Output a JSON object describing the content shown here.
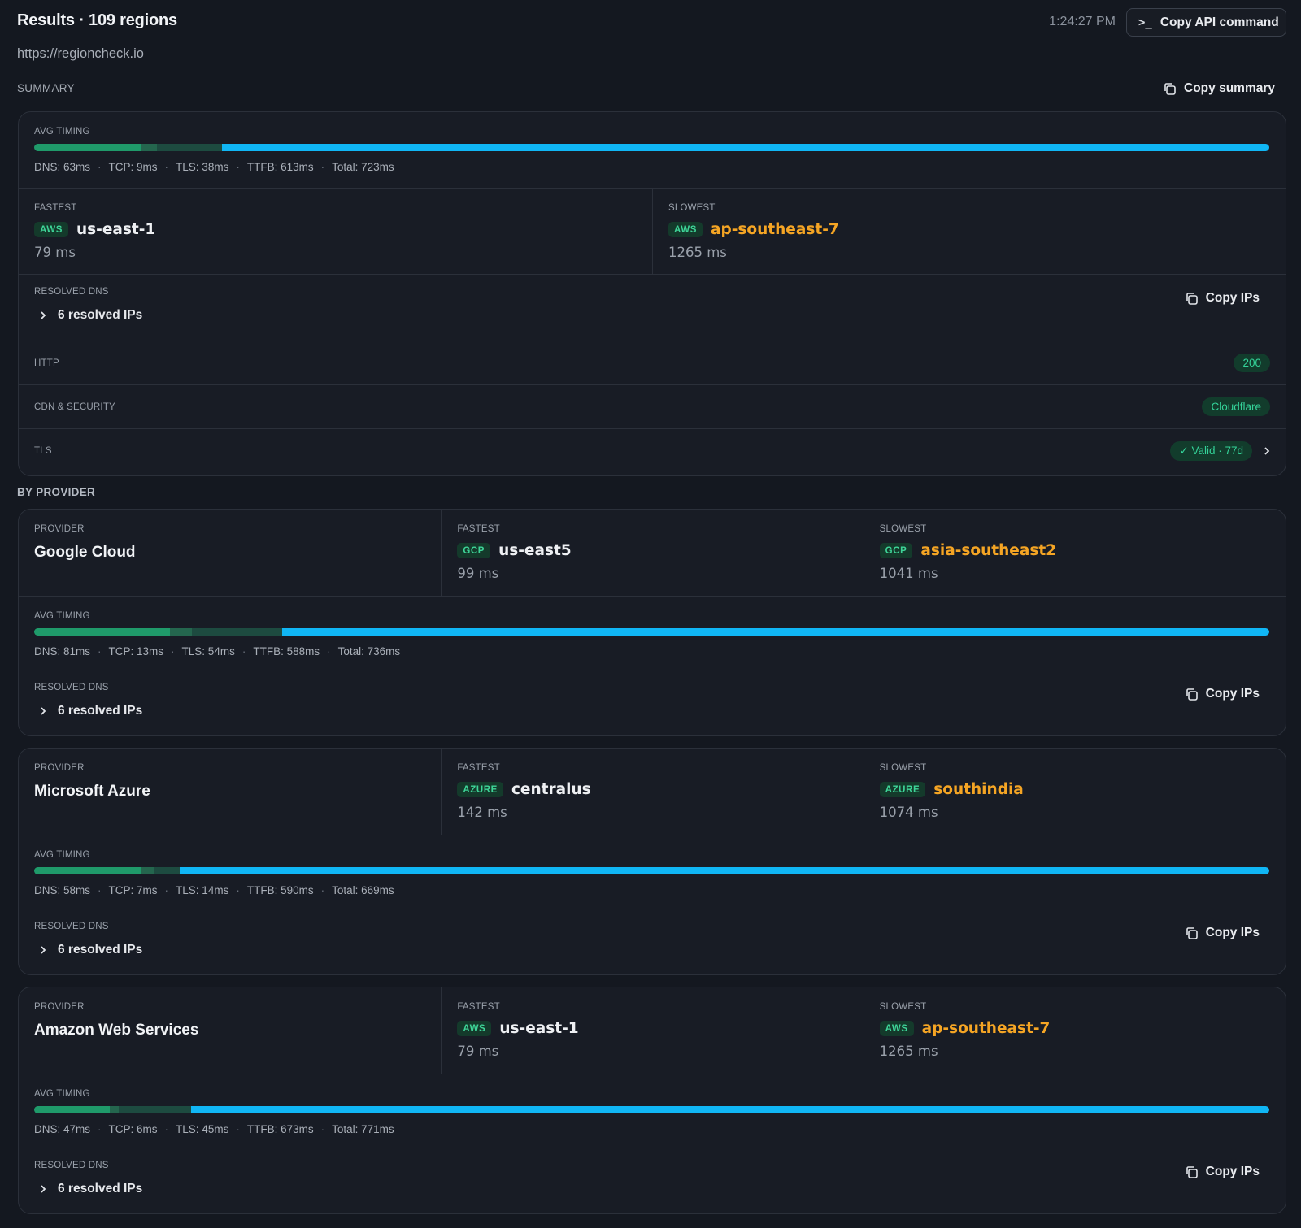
{
  "header": {
    "title": "Results · 109 regions",
    "time": "1:24:27 PM",
    "api_button": "Copy API command",
    "url": "https://regioncheck.io"
  },
  "summary": {
    "label": "SUMMARY",
    "copy_label": "Copy summary",
    "timing_label": "AVG TIMING",
    "timing": {
      "dns": "DNS: 63ms",
      "tcp": "TCP: 9ms",
      "tls": "TLS: 38ms",
      "ttfb": "TTFB: 613ms",
      "total": "Total: 723ms"
    },
    "timing_ms": {
      "dns": 63,
      "tcp": 9,
      "tls": 38,
      "ttfb": 613
    },
    "fastest": {
      "label": "FASTEST",
      "provider_tag": "AWS",
      "region": "us-east-1",
      "ms": "79 ms"
    },
    "slowest": {
      "label": "SLOWEST",
      "provider_tag": "AWS",
      "region": "ap-southeast-7",
      "ms": "1265 ms"
    },
    "dns": {
      "label": "RESOLVED DNS",
      "toggle": "6 resolved IPs",
      "copy": "Copy IPs"
    },
    "http": {
      "label": "HTTP",
      "value": "200"
    },
    "cdn": {
      "label": "CDN & SECURITY",
      "value": "Cloudflare"
    },
    "tls": {
      "label": "TLS",
      "value": "✓ Valid · 77d"
    }
  },
  "by_provider": {
    "label": "BY PROVIDER",
    "providers": [
      {
        "provider_label": "PROVIDER",
        "name": "Google Cloud",
        "fastest": {
          "label": "FASTEST",
          "tag": "GCP",
          "region": "us-east5",
          "ms": "99 ms"
        },
        "slowest": {
          "label": "SLOWEST",
          "tag": "GCP",
          "region": "asia-southeast2",
          "ms": "1041 ms"
        },
        "timing_label": "AVG TIMING",
        "timing": {
          "dns": "DNS: 81ms",
          "tcp": "TCP: 13ms",
          "tls": "TLS: 54ms",
          "ttfb": "TTFB: 588ms",
          "total": "Total: 736ms"
        },
        "timing_ms": {
          "dns": 81,
          "tcp": 13,
          "tls": 54,
          "ttfb": 588
        },
        "dns": {
          "label": "RESOLVED DNS",
          "toggle": "6 resolved IPs",
          "copy": "Copy IPs"
        }
      },
      {
        "provider_label": "PROVIDER",
        "name": "Microsoft Azure",
        "fastest": {
          "label": "FASTEST",
          "tag": "AZURE",
          "region": "centralus",
          "ms": "142 ms"
        },
        "slowest": {
          "label": "SLOWEST",
          "tag": "AZURE",
          "region": "southindia",
          "ms": "1074 ms"
        },
        "timing_label": "AVG TIMING",
        "timing": {
          "dns": "DNS: 58ms",
          "tcp": "TCP: 7ms",
          "tls": "TLS: 14ms",
          "ttfb": "TTFB: 590ms",
          "total": "Total: 669ms"
        },
        "timing_ms": {
          "dns": 58,
          "tcp": 7,
          "tls": 14,
          "ttfb": 590
        },
        "dns": {
          "label": "RESOLVED DNS",
          "toggle": "6 resolved IPs",
          "copy": "Copy IPs"
        }
      },
      {
        "provider_label": "PROVIDER",
        "name": "Amazon Web Services",
        "fastest": {
          "label": "FASTEST",
          "tag": "AWS",
          "region": "us-east-1",
          "ms": "79 ms"
        },
        "slowest": {
          "label": "SLOWEST",
          "tag": "AWS",
          "region": "ap-southeast-7",
          "ms": "1265 ms"
        },
        "timing_label": "AVG TIMING",
        "timing": {
          "dns": "DNS: 47ms",
          "tcp": "TCP: 6ms",
          "tls": "TLS: 45ms",
          "ttfb": "TTFB: 673ms",
          "total": "Total: 771ms"
        },
        "timing_ms": {
          "dns": 47,
          "tcp": 6,
          "tls": 45,
          "ttfb": 673
        },
        "dns": {
          "label": "RESOLVED DNS",
          "toggle": "6 resolved IPs",
          "copy": "Copy IPs"
        }
      }
    ]
  },
  "colors": {
    "dns": "#1f9a6a",
    "tcp": "#24664e",
    "tls": "#1d4b40",
    "ttfb": "#10b6f5",
    "slow_region": "#f5a524",
    "ok_green": "#34d399"
  },
  "icons": [
    "terminal-icon",
    "copy-icon",
    "chevron-right-icon"
  ]
}
